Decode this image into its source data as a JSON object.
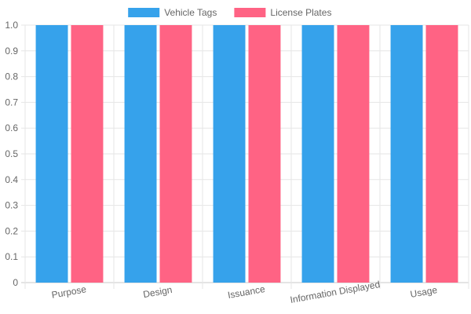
{
  "chart_data": {
    "type": "bar",
    "categories": [
      "Purpose",
      "Design",
      "Issuance",
      "Information Displayed",
      "Usage"
    ],
    "series": [
      {
        "name": "Vehicle Tags",
        "values": [
          1,
          1,
          1,
          1,
          1
        ],
        "color": "#36a2eb"
      },
      {
        "name": "License Plates",
        "values": [
          1,
          1,
          1,
          1,
          1
        ],
        "color": "#ff6384"
      }
    ],
    "yticks": [
      "0",
      "0.1",
      "0.2",
      "0.3",
      "0.4",
      "0.5",
      "0.6",
      "0.7",
      "0.8",
      "0.9",
      "1.0"
    ],
    "ylim": [
      0,
      1
    ],
    "grid": true,
    "legend_position": "top-center",
    "xtick_rotation_deg": -10
  }
}
